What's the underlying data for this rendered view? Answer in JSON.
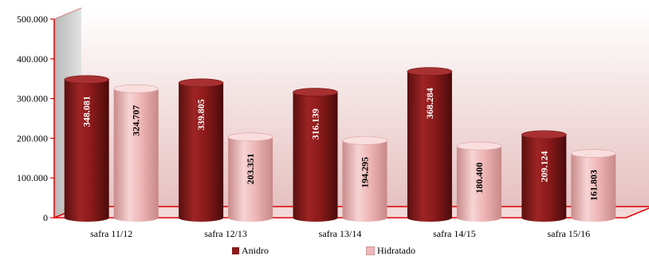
{
  "chart_data": {
    "type": "bar",
    "categories": [
      "safra 11/12",
      "safra 12/13",
      "safra 13/14",
      "safra 14/15",
      "safra 15/16"
    ],
    "series": [
      {
        "name": "Anidro",
        "values": [
          348081,
          339805,
          316139,
          368284,
          209124
        ],
        "labels": [
          "348.081",
          "339.805",
          "316.139",
          "368.284",
          "209.124"
        ],
        "color": "#8b1a1a"
      },
      {
        "name": "Hidratado",
        "values": [
          324707,
          203351,
          194295,
          180400,
          161803
        ],
        "labels": [
          "324.707",
          "203.351",
          "194.295",
          "180.400",
          "161.803"
        ],
        "color": "#f0b8b8"
      }
    ],
    "yticks": [
      "0",
      "100.000",
      "200.000",
      "300.000",
      "400.000",
      "500.000"
    ],
    "ylim": [
      0,
      500000
    ],
    "legend_position": "bottom",
    "title": "",
    "xlabel": "",
    "ylabel": "",
    "wall_color": "#e8c8c8",
    "axis_color": "#e00000"
  }
}
